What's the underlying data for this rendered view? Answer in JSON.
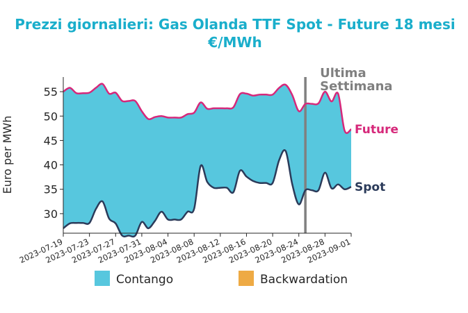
{
  "chart_data": {
    "type": "area",
    "title_line1": "Prezzi giornalieri: Gas Olanda TTF Spot - Future 18 mesi",
    "title_line2": "€/MWh",
    "xlabel": "",
    "ylabel": "Euro per MWh",
    "ylim": [
      26,
      58
    ],
    "yticks": [
      30,
      35,
      40,
      45,
      50,
      55
    ],
    "xlim": [
      "2023-07-19",
      "2023-09-01"
    ],
    "xticks": [
      "2023-07-19",
      "2023-07-23",
      "2023-07-27",
      "2023-07-31",
      "2023-08-04",
      "2023-08-08",
      "2023-08-12",
      "2023-08-16",
      "2023-08-20",
      "2023-08-24",
      "2023-08-28",
      "2023-09-01"
    ],
    "series": [
      {
        "name": "Future",
        "color": "#d6287a",
        "x": [
          "2023-07-19",
          "2023-07-20",
          "2023-07-21",
          "2023-07-22",
          "2023-07-23",
          "2023-07-24",
          "2023-07-25",
          "2023-07-26",
          "2023-07-27",
          "2023-07-28",
          "2023-07-29",
          "2023-07-30",
          "2023-07-31",
          "2023-08-01",
          "2023-08-02",
          "2023-08-03",
          "2023-08-04",
          "2023-08-05",
          "2023-08-06",
          "2023-08-07",
          "2023-08-08",
          "2023-08-09",
          "2023-08-10",
          "2023-08-11",
          "2023-08-12",
          "2023-08-13",
          "2023-08-14",
          "2023-08-15",
          "2023-08-16",
          "2023-08-17",
          "2023-08-18",
          "2023-08-19",
          "2023-08-20",
          "2023-08-21",
          "2023-08-22",
          "2023-08-23",
          "2023-08-24",
          "2023-08-25",
          "2023-08-26",
          "2023-08-27",
          "2023-08-28",
          "2023-08-29",
          "2023-08-30",
          "2023-08-31",
          "2023-09-01"
        ],
        "values": [
          55.0,
          55.8,
          54.7,
          54.7,
          54.8,
          55.8,
          56.6,
          54.6,
          54.8,
          53.1,
          53.1,
          53.1,
          51.0,
          49.4,
          49.8,
          50.0,
          49.7,
          49.7,
          49.7,
          50.4,
          50.7,
          52.8,
          51.5,
          51.6,
          51.6,
          51.6,
          51.8,
          54.5,
          54.6,
          54.2,
          54.4,
          54.4,
          54.4,
          55.8,
          56.4,
          54.3,
          51.0,
          52.5,
          52.5,
          52.6,
          55.0,
          53.0,
          54.6,
          47.0,
          47.3
        ]
      },
      {
        "name": "Spot",
        "color": "#2b3b5a",
        "x": [
          "2023-07-19",
          "2023-07-20",
          "2023-07-21",
          "2023-07-22",
          "2023-07-23",
          "2023-07-24",
          "2023-07-25",
          "2023-07-26",
          "2023-07-27",
          "2023-07-28",
          "2023-07-29",
          "2023-07-30",
          "2023-07-31",
          "2023-08-01",
          "2023-08-02",
          "2023-08-03",
          "2023-08-04",
          "2023-08-05",
          "2023-08-06",
          "2023-08-07",
          "2023-08-08",
          "2023-08-09",
          "2023-08-10",
          "2023-08-11",
          "2023-08-12",
          "2023-08-13",
          "2023-08-14",
          "2023-08-15",
          "2023-08-16",
          "2023-08-17",
          "2023-08-18",
          "2023-08-19",
          "2023-08-20",
          "2023-08-21",
          "2023-08-22",
          "2023-08-23",
          "2023-08-24",
          "2023-08-25",
          "2023-08-26",
          "2023-08-27",
          "2023-08-28",
          "2023-08-29",
          "2023-08-30",
          "2023-08-31",
          "2023-09-01"
        ],
        "values": [
          27.0,
          28.0,
          28.1,
          28.1,
          28.1,
          31.0,
          32.5,
          29.0,
          28.0,
          25.5,
          25.5,
          25.5,
          28.3,
          27.0,
          28.5,
          30.4,
          28.8,
          28.8,
          28.8,
          30.4,
          31.0,
          39.8,
          36.5,
          35.3,
          35.3,
          35.3,
          34.4,
          38.8,
          37.6,
          36.7,
          36.3,
          36.3,
          36.3,
          41.0,
          42.8,
          36.0,
          31.9,
          34.8,
          34.8,
          34.8,
          38.4,
          35.2,
          36.0,
          35.0,
          35.5
        ]
      }
    ],
    "fill_between": {
      "contango_color": "#57c7de",
      "backwardation_color": "#eeaa44"
    },
    "vline": {
      "x": "2023-08-25",
      "color": "#808080",
      "label_line1": "Ultima",
      "label_line2": "Settimana"
    },
    "legend": [
      {
        "label": "Contango",
        "color": "#57c7de"
      },
      {
        "label": "Backwardation",
        "color": "#eeaa44"
      }
    ],
    "legend_placement": "bottom",
    "grid": false,
    "colors": {
      "title": "#1aaecb",
      "annotation": "#808080",
      "axis": "#262626"
    }
  }
}
